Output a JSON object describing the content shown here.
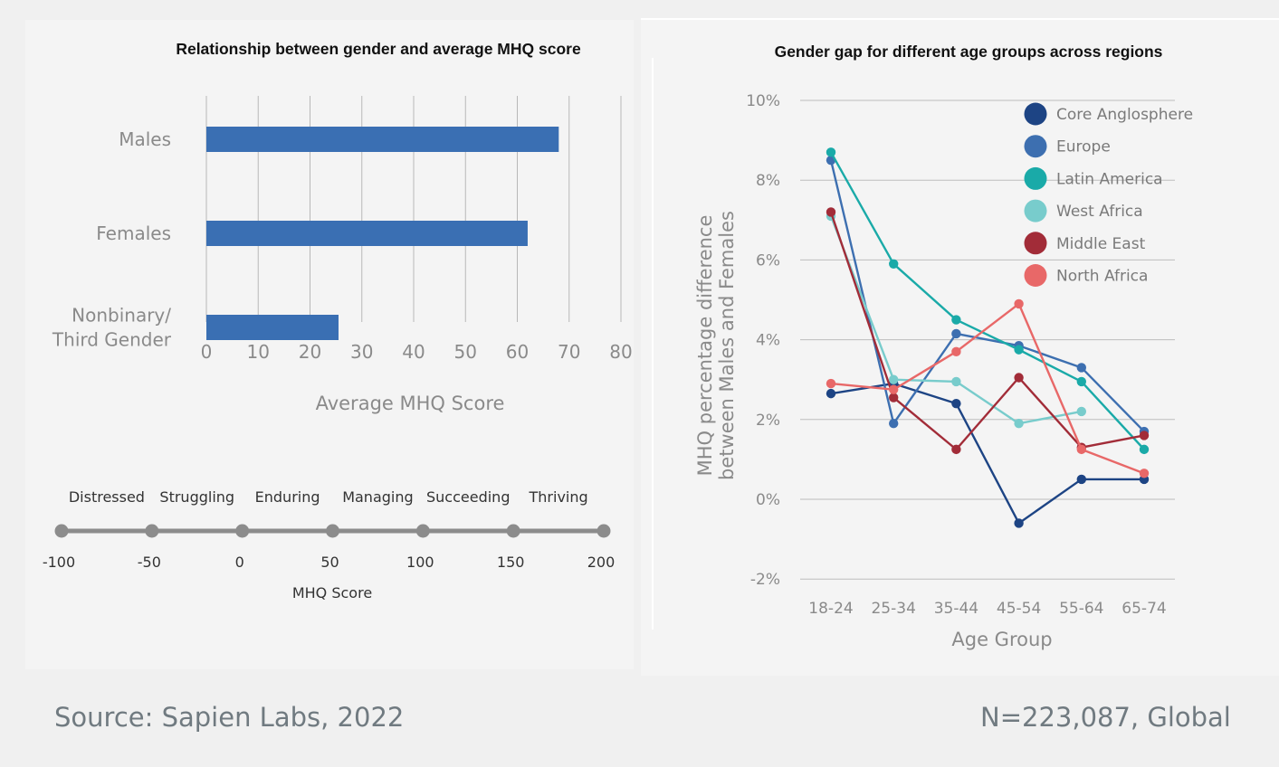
{
  "footer": {
    "source": "Source: Sapien Labs, 2022",
    "sample": "N=223,087, Global"
  },
  "chart_data": [
    {
      "type": "bar",
      "orientation": "horizontal",
      "title": "Relationship between gender and average MHQ score",
      "categories": [
        "Males",
        "Females",
        "Nonbinary/ Third Gender"
      ],
      "category_lines": [
        [
          "Males"
        ],
        [
          "Females"
        ],
        [
          "Nonbinary/",
          "Third Gender"
        ]
      ],
      "values": [
        68,
        62,
        25.5
      ],
      "xlabel": "Average MHQ Score",
      "xlim": [
        0,
        80
      ],
      "xticks": [
        "0",
        "10",
        "20",
        "30",
        "40",
        "50",
        "60",
        "70",
        "80"
      ],
      "grid": "vertical",
      "color": "#3a6fb3"
    },
    {
      "type": "scale",
      "title": "MHQ Score",
      "ticks": [
        "-100",
        "-50",
        "0",
        "50",
        "100",
        "150",
        "200"
      ],
      "tick_values": [
        -100,
        -50,
        0,
        50,
        100,
        150,
        200
      ],
      "categories": [
        "Distressed",
        "Struggling",
        "Enduring",
        "Managing",
        "Succeeding",
        "Thriving"
      ],
      "color": "#8c8c8c"
    },
    {
      "type": "line",
      "title": "Gender gap for different age groups across regions",
      "xlabel": "Age Group",
      "ylabel_lines": [
        "MHQ percentage difference",
        "between Males and Females"
      ],
      "categories": [
        "18-24",
        "25-34",
        "35-44",
        "45-54",
        "55-64",
        "65-74"
      ],
      "ylim": [
        -2,
        10
      ],
      "yticks": [
        "-2%",
        "0%",
        "2%",
        "4%",
        "6%",
        "8%",
        "10%"
      ],
      "ytick_values": [
        -2,
        0,
        2,
        4,
        6,
        8,
        10
      ],
      "legend_position": "top-right",
      "series": [
        {
          "name": "Core Anglosphere",
          "color": "#1d4484",
          "values": [
            2.65,
            2.9,
            2.4,
            -0.6,
            0.5,
            0.5
          ]
        },
        {
          "name": "Europe",
          "color": "#3d6fb0",
          "values": [
            8.5,
            1.9,
            4.15,
            3.85,
            3.3,
            1.7
          ]
        },
        {
          "name": "Latin America",
          "color": "#1aaaa8",
          "values": [
            8.7,
            5.9,
            4.5,
            3.75,
            2.95,
            1.25
          ]
        },
        {
          "name": "West Africa",
          "color": "#78cccc",
          "values": [
            7.1,
            3.0,
            2.95,
            1.9,
            2.2,
            null
          ]
        },
        {
          "name": "Middle East",
          "color": "#a22c38",
          "values": [
            7.2,
            2.55,
            1.25,
            3.05,
            1.3,
            1.6
          ]
        },
        {
          "name": "North Africa",
          "color": "#e86868",
          "values": [
            2.9,
            2.75,
            3.7,
            4.9,
            1.25,
            0.65
          ]
        }
      ]
    }
  ]
}
